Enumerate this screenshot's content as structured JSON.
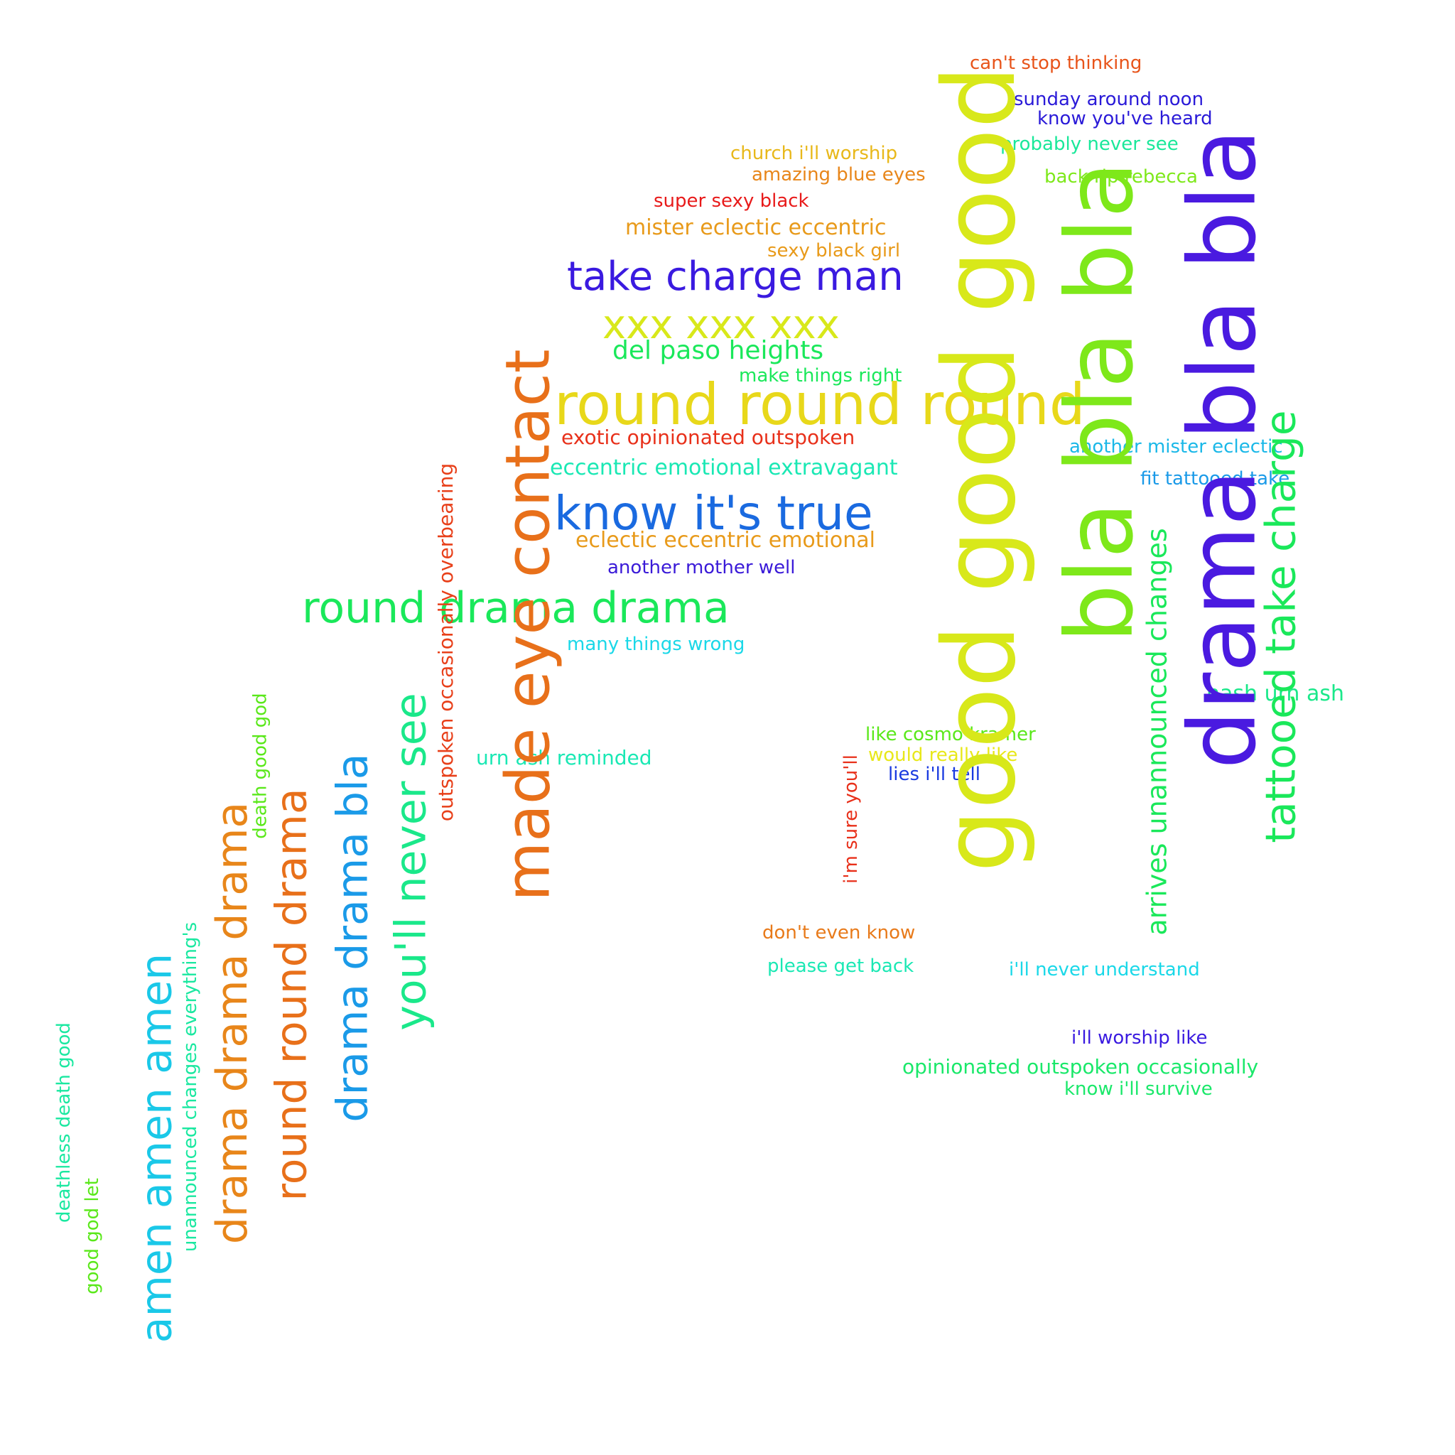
{
  "words": [
    {
      "text": "can't stop thinking",
      "color": "#e8541a"
    },
    {
      "text": "sunday around noon",
      "color": "#2a1ad8"
    },
    {
      "text": "know you've heard",
      "color": "#2a1ad8"
    },
    {
      "text": "church i'll worship",
      "color": "#e8b81a"
    },
    {
      "text": "probably never see",
      "color": "#1ae89a"
    },
    {
      "text": "amazing blue eyes",
      "color": "#e8861a"
    },
    {
      "text": "back rip rebecca",
      "color": "#7ee81a"
    },
    {
      "text": "super sexy black",
      "color": "#e81a1a"
    },
    {
      "text": "mister eclectic eccentric",
      "color": "#e89a1a"
    },
    {
      "text": "sexy black girl",
      "color": "#e89a1a"
    },
    {
      "text": "take charge man",
      "color": "#3a1ae0"
    },
    {
      "text": "xxx xxx xxx",
      "color": "#d8e81a"
    },
    {
      "text": "del paso heights",
      "color": "#1ae85a"
    },
    {
      "text": "make things right",
      "color": "#1ae85a"
    },
    {
      "text": "round round round",
      "color": "#e8d81a"
    },
    {
      "text": "exotic opinionated outspoken",
      "color": "#e8301a"
    },
    {
      "text": "eccentric emotional extravagant",
      "color": "#1ae8b4"
    },
    {
      "text": "another mister eclectic",
      "color": "#1ab8e8"
    },
    {
      "text": "fit tattooed take",
      "color": "#1a9ae8"
    },
    {
      "text": "know it's true",
      "color": "#1a6ae0"
    },
    {
      "text": "eclectic eccentric emotional",
      "color": "#e89a1a"
    },
    {
      "text": "another mother well",
      "color": "#3a1ad8"
    },
    {
      "text": "round drama drama",
      "color": "#1ae85a"
    },
    {
      "text": "many things wrong",
      "color": "#1ad8e8"
    },
    {
      "text": "hash urn ash",
      "color": "#1ae88a"
    },
    {
      "text": "like cosmo kramer",
      "color": "#5ae81a"
    },
    {
      "text": "would really like",
      "color": "#e8e81a"
    },
    {
      "text": "lies i'll tell",
      "color": "#1a3ae0"
    },
    {
      "text": "urn ash reminded",
      "color": "#1ae8b4"
    },
    {
      "text": "don't even know",
      "color": "#e87a1a"
    },
    {
      "text": "please get back",
      "color": "#1ae8b4"
    },
    {
      "text": "i'll never understand",
      "color": "#1ad8e8"
    },
    {
      "text": "i'll worship like",
      "color": "#3a1ae0"
    },
    {
      "text": "opinionated outspoken occasionally",
      "color": "#1ae86a"
    },
    {
      "text": "know i'll survive",
      "color": "#1ae86a"
    },
    {
      "text": "good good good",
      "color": "#d8e81a"
    },
    {
      "text": "bla bla bla",
      "color": "#7ee81a"
    },
    {
      "text": "drama bla bla",
      "color": "#4a1ae0"
    },
    {
      "text": "tattooed take charge",
      "color": "#1ae85a"
    },
    {
      "text": "arrives unannounced changes",
      "color": "#1ae85a"
    },
    {
      "text": "made eye contact",
      "color": "#e8701a"
    },
    {
      "text": "outspoken occasionally overbearing",
      "color": "#e8401a"
    },
    {
      "text": "you'll never see",
      "color": "#1ae88a"
    },
    {
      "text": "drama drama bla",
      "color": "#1a9ae8"
    },
    {
      "text": "round round drama",
      "color": "#e8701a"
    },
    {
      "text": "death good god",
      "color": "#5ae81a"
    },
    {
      "text": "drama drama drama",
      "color": "#e8861a"
    },
    {
      "text": "unannounced changes everything's",
      "color": "#1ae8a0"
    },
    {
      "text": "amen amen amen",
      "color": "#1ac8e8"
    },
    {
      "text": "deathless death good",
      "color": "#1ae8a0"
    },
    {
      "text": "good god let",
      "color": "#5ae81a"
    },
    {
      "text": "i'm sure you'll",
      "color": "#e8301a"
    }
  ]
}
